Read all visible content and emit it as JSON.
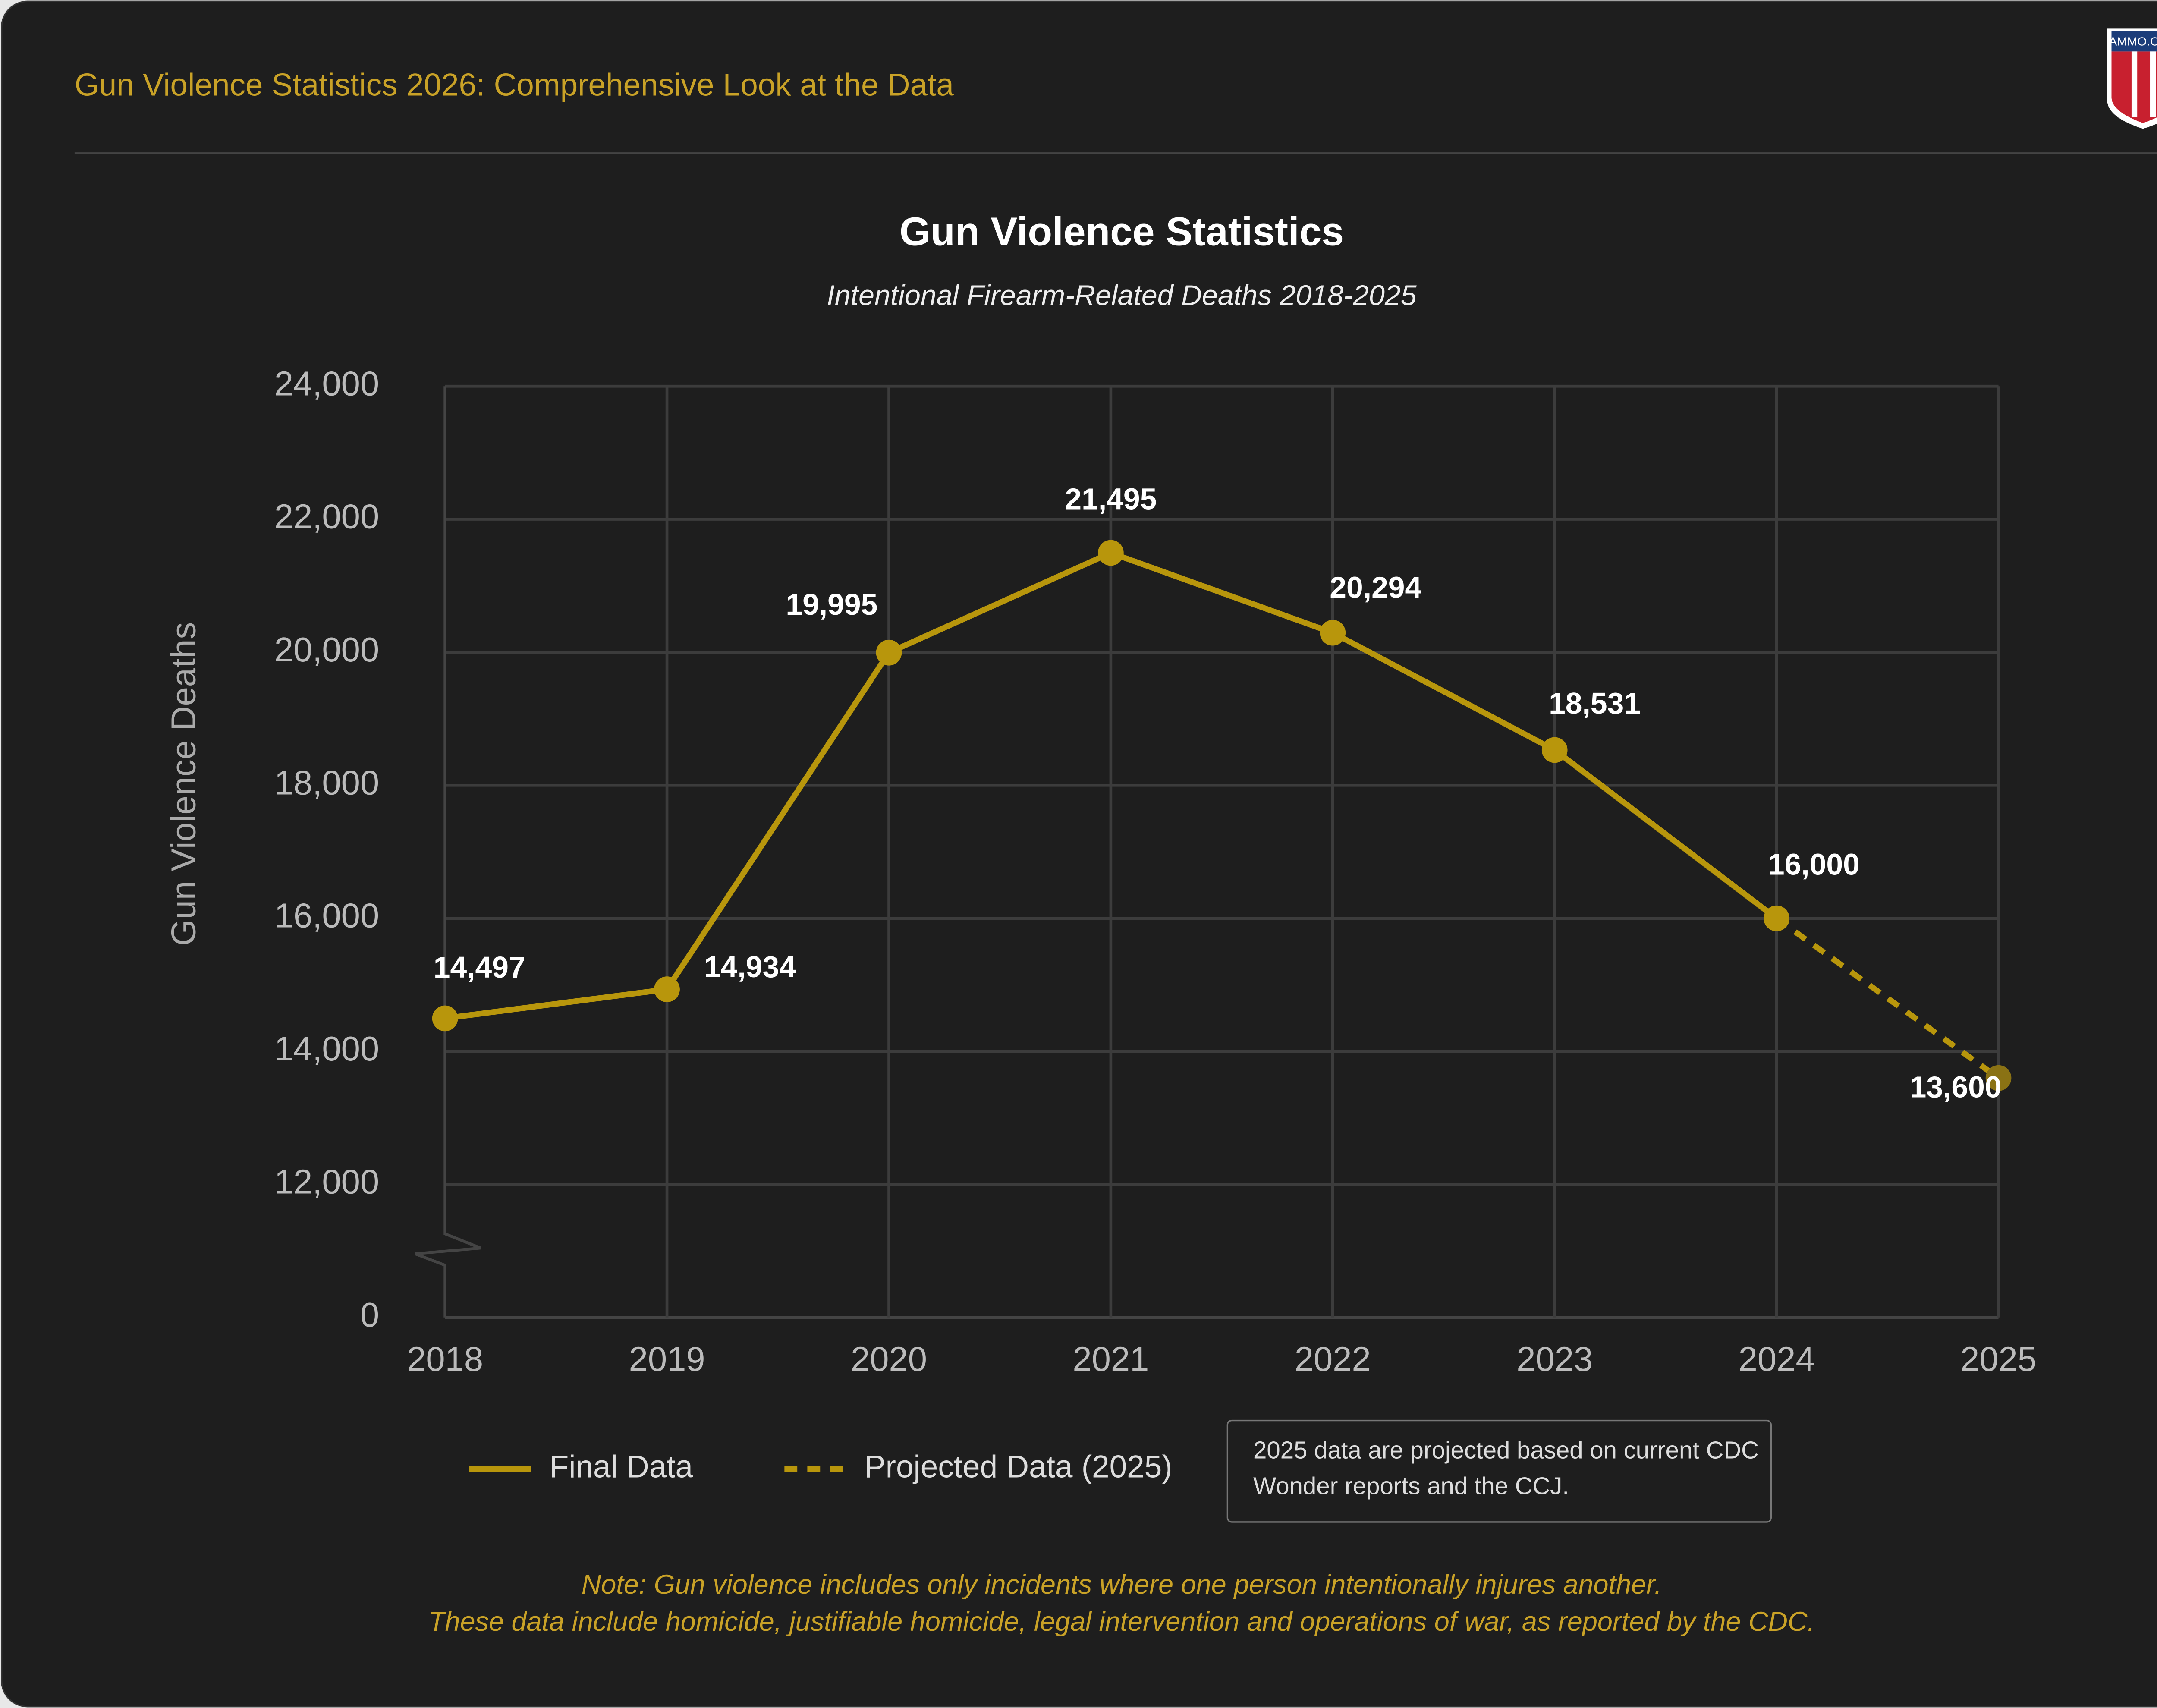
{
  "header": {
    "title": "Gun Violence Statistics 2026: Comprehensive Look at the Data",
    "logo": "AMMO.COM"
  },
  "chart_data": {
    "type": "line",
    "title": "Gun Violence Statistics",
    "subtitle": "Intentional Firearm-Related Deaths 2018-2025",
    "y_label": "Gun Violence Deaths",
    "categories": [
      "2018",
      "2019",
      "2020",
      "2021",
      "2022",
      "2023",
      "2024",
      "2025"
    ],
    "series": [
      {
        "name": "Final Data",
        "color": "#b8960c",
        "dashed": false,
        "values": [
          14497,
          14934,
          19995,
          21495,
          20294,
          18531,
          16000,
          null
        ],
        "value_labels": [
          "14,497",
          "14,934",
          "19,995",
          "21,495",
          "20,294",
          "18,531",
          "16,000",
          null
        ]
      },
      {
        "name": "Projected Data (2025)",
        "color": "#b8960c",
        "marker_color": "#8a7214",
        "dashed": true,
        "values": [
          null,
          null,
          null,
          null,
          null,
          null,
          16000,
          13600
        ],
        "value_labels": [
          null,
          null,
          null,
          null,
          null,
          null,
          null,
          "13,600"
        ]
      }
    ],
    "ylim": [
      0,
      24000
    ],
    "y_axis_break": true,
    "yticks": [
      0,
      {
        "value": 12000,
        "label": "12,000"
      },
      {
        "value": 14000,
        "label": "14,000"
      },
      {
        "value": 16000,
        "label": "16,000"
      },
      {
        "value": 18000,
        "label": "18,000"
      },
      {
        "value": 20000,
        "label": "20,000"
      },
      {
        "value": 22000,
        "label": "22,000"
      },
      {
        "value": 24000,
        "label": "24,000"
      }
    ],
    "grid": true,
    "legend_position": "bottom",
    "annotation": "2025 data are projected based on current CDC Wonder reports and the CCJ.",
    "notes": [
      "Note: Gun violence includes only incidents where one person intentionally injures another.",
      "These data include homicide, justifiable homicide, legal intervention and operations of war, as reported by the CDC."
    ]
  }
}
